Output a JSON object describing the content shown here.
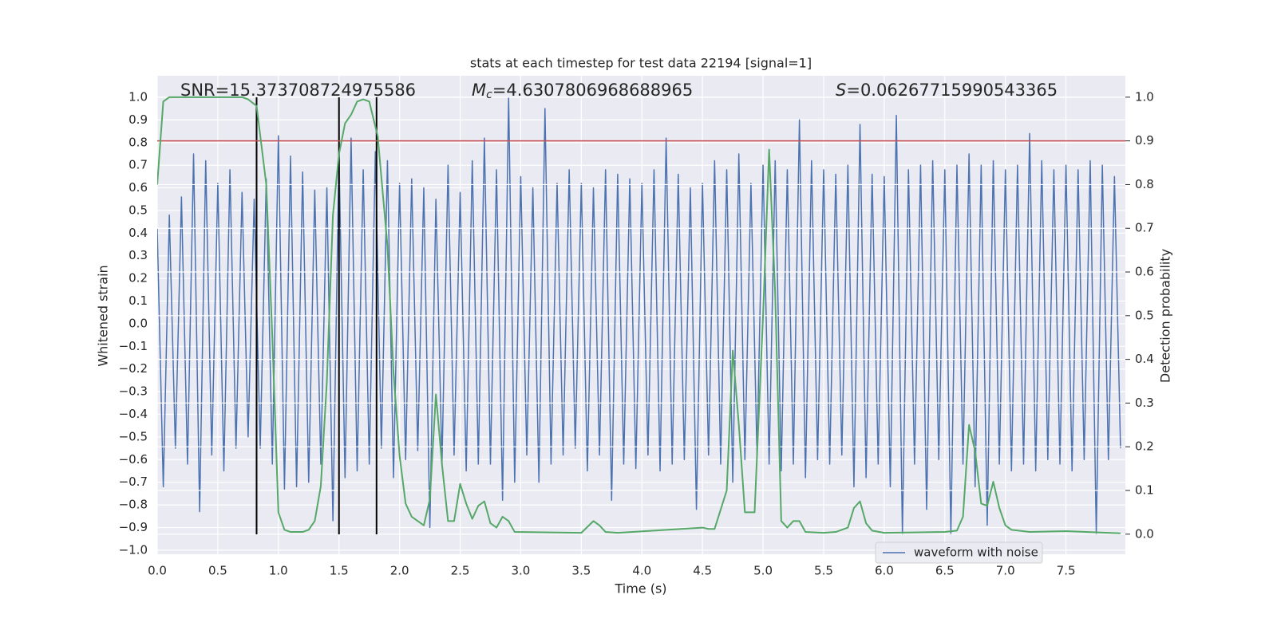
{
  "chart_data": {
    "type": "line",
    "title": "stats at each timestep for test data 22194 [signal=1]",
    "xlabel": "Time (s)",
    "ylabel": "Whitened strain",
    "y2label": "Detection probability",
    "annotations": [
      {
        "text": "SNR=15.373708724975586"
      },
      {
        "symbol": "M",
        "subscript": "c",
        "text": "=4.6307806968688965"
      },
      {
        "symbol": "S",
        "text": "=0.06267715990543365"
      }
    ],
    "xlim": [
      0,
      7.99
    ],
    "ylim": [
      -1.018,
      1.095
    ],
    "y2lim": [
      -0.046,
      1.049
    ],
    "xticks": [
      {
        "value": 0,
        "label": "0.0"
      },
      {
        "value": 0.5,
        "label": "0.5"
      },
      {
        "value": 1,
        "label": "1.0"
      },
      {
        "value": 1.5,
        "label": "1.5"
      },
      {
        "value": 2,
        "label": "2.0"
      },
      {
        "value": 2.5,
        "label": "2.5"
      },
      {
        "value": 3,
        "label": "3.0"
      },
      {
        "value": 3.5,
        "label": "3.5"
      },
      {
        "value": 4,
        "label": "4.0"
      },
      {
        "value": 4.5,
        "label": "4.5"
      },
      {
        "value": 5,
        "label": "5.0"
      },
      {
        "value": 5.5,
        "label": "5.5"
      },
      {
        "value": 6,
        "label": "6.0"
      },
      {
        "value": 6.5,
        "label": "6.5"
      },
      {
        "value": 7,
        "label": "7.0"
      },
      {
        "value": 7.5,
        "label": "7.5"
      }
    ],
    "yticks": [
      {
        "value": -1,
        "label": "−1.0"
      },
      {
        "value": -0.9,
        "label": "−0.9"
      },
      {
        "value": -0.8,
        "label": "−0.8"
      },
      {
        "value": -0.7,
        "label": "−0.7"
      },
      {
        "value": -0.6,
        "label": "−0.6"
      },
      {
        "value": -0.5,
        "label": "−0.5"
      },
      {
        "value": -0.4,
        "label": "−0.4"
      },
      {
        "value": -0.3,
        "label": "−0.3"
      },
      {
        "value": -0.2,
        "label": "−0.2"
      },
      {
        "value": -0.1,
        "label": "−0.1"
      },
      {
        "value": 0,
        "label": "0.0"
      },
      {
        "value": 0.1,
        "label": "0.1"
      },
      {
        "value": 0.2,
        "label": "0.2"
      },
      {
        "value": 0.3,
        "label": "0.3"
      },
      {
        "value": 0.4,
        "label": "0.4"
      },
      {
        "value": 0.5,
        "label": "0.5"
      },
      {
        "value": 0.6,
        "label": "0.6"
      },
      {
        "value": 0.7,
        "label": "0.7"
      },
      {
        "value": 0.8,
        "label": "0.8"
      },
      {
        "value": 0.9,
        "label": "0.9"
      },
      {
        "value": 1,
        "label": "1.0"
      }
    ],
    "y2ticks": [
      {
        "value": 0,
        "label": "0.0"
      },
      0.1,
      0.2,
      0.3,
      0.4,
      0.5,
      0.6,
      0.7,
      0.8,
      0.9,
      {
        "value": 1,
        "label": "1.0"
      }
    ],
    "grid": true,
    "legend": "lower right",
    "series": [
      {
        "name": "waveform with noise",
        "color": "#4c72b0",
        "x": [
          0,
          0.05,
          0.1,
          0.15,
          0.2,
          0.25,
          0.3,
          0.35,
          0.4,
          0.45,
          0.5,
          0.55,
          0.6,
          0.65,
          0.7,
          0.75,
          0.8,
          0.85,
          0.9,
          0.95,
          1,
          1.05,
          1.1,
          1.15,
          1.2,
          1.25,
          1.3,
          1.35,
          1.4,
          1.45,
          1.5,
          1.55,
          1.6,
          1.65,
          1.7,
          1.75,
          1.8,
          1.85,
          1.9,
          1.95,
          2,
          2.05,
          2.1,
          2.15,
          2.2,
          2.25,
          2.3,
          2.35,
          2.4,
          2.45,
          2.5,
          2.55,
          2.6,
          2.65,
          2.7,
          2.75,
          2.8,
          2.85,
          2.9,
          2.95,
          3,
          3.05,
          3.1,
          3.15,
          3.2,
          3.25,
          3.3,
          3.35,
          3.4,
          3.45,
          3.5,
          3.55,
          3.6,
          3.65,
          3.7,
          3.75,
          3.8,
          3.85,
          3.9,
          3.95,
          4,
          4.05,
          4.1,
          4.15,
          4.2,
          4.25,
          4.3,
          4.35,
          4.4,
          4.45,
          4.5,
          4.55,
          4.6,
          4.65,
          4.7,
          4.75,
          4.8,
          4.85,
          4.9,
          4.95,
          5,
          5.05,
          5.1,
          5.15,
          5.2,
          5.25,
          5.3,
          5.35,
          5.4,
          5.45,
          5.5,
          5.55,
          5.6,
          5.65,
          5.7,
          5.75,
          5.8,
          5.85,
          5.9,
          5.95,
          6,
          6.05,
          6.1,
          6.15,
          6.2,
          6.25,
          6.3,
          6.35,
          6.4,
          6.45,
          6.5,
          6.55,
          6.6,
          6.65,
          6.7,
          6.75,
          6.8,
          6.85,
          6.9,
          6.95,
          7,
          7.05,
          7.1,
          7.15,
          7.2,
          7.25,
          7.3,
          7.35,
          7.4,
          7.45,
          7.5,
          7.55,
          7.6,
          7.65,
          7.7,
          7.75,
          7.8,
          7.85,
          7.9,
          7.95
        ],
        "values": [
          0.42,
          -0.72,
          0.48,
          -0.55,
          0.56,
          -0.62,
          0.75,
          -0.83,
          0.72,
          -0.58,
          0.62,
          -0.65,
          0.68,
          -0.55,
          0.58,
          -0.5,
          0.55,
          -0.55,
          0.64,
          -0.62,
          0.83,
          -0.73,
          0.74,
          -0.72,
          0.67,
          -0.7,
          0.59,
          -0.62,
          0.6,
          -0.87,
          0.75,
          -0.68,
          0.82,
          -0.65,
          0.68,
          -0.62,
          0.76,
          -0.55,
          0.72,
          -0.68,
          0.62,
          -0.6,
          0.64,
          -0.56,
          0.6,
          -0.9,
          0.55,
          -0.62,
          0.7,
          -0.58,
          0.58,
          -0.65,
          0.72,
          -0.62,
          0.82,
          -0.62,
          0.68,
          -0.78,
          1.0,
          -0.7,
          0.65,
          -0.58,
          0.6,
          -0.7,
          0.95,
          -0.62,
          0.62,
          -0.58,
          0.68,
          -0.55,
          0.62,
          -0.65,
          0.6,
          -0.58,
          0.68,
          -0.78,
          0.66,
          -0.62,
          0.64,
          -0.64,
          0.62,
          -0.58,
          0.68,
          -0.65,
          0.82,
          -0.62,
          0.66,
          -0.6,
          0.6,
          -0.82,
          0.62,
          -0.58,
          0.72,
          -0.62,
          0.68,
          -0.7,
          0.75,
          -0.6,
          0.62,
          -0.58,
          0.7,
          -0.62,
          0.72,
          -0.65,
          0.68,
          -0.62,
          0.9,
          -0.68,
          0.72,
          -0.6,
          0.68,
          -0.62,
          0.66,
          -0.58,
          0.7,
          -0.72,
          0.88,
          -0.68,
          0.66,
          -0.62,
          0.65,
          -0.72,
          0.92,
          -0.93,
          0.68,
          -0.62,
          0.7,
          -0.82,
          0.72,
          -0.6,
          0.68,
          -0.93,
          0.7,
          -0.62,
          0.75,
          -0.72,
          0.7,
          -0.89,
          0.72,
          -0.62,
          0.68,
          -0.65,
          0.7,
          -0.62,
          0.84,
          -0.65,
          0.72,
          -0.6,
          0.68,
          -0.62,
          0.7,
          -0.65,
          0.68,
          -0.6,
          0.72,
          -0.93,
          0.7,
          -0.6,
          0.65,
          -0.55
        ]
      },
      {
        "color": "#55a868",
        "axis": "y2",
        "x": [
          0,
          0.05,
          0.1,
          0.2,
          0.5,
          0.7,
          0.75,
          0.82,
          0.9,
          0.95,
          1,
          1.05,
          1.1,
          1.2,
          1.25,
          1.3,
          1.35,
          1.4,
          1.45,
          1.5,
          1.55,
          1.6,
          1.65,
          1.7,
          1.75,
          1.82,
          1.9,
          1.95,
          2,
          2.05,
          2.1,
          2.15,
          2.2,
          2.25,
          2.3,
          2.35,
          2.4,
          2.45,
          2.5,
          2.55,
          2.6,
          2.65,
          2.7,
          2.75,
          2.8,
          2.85,
          2.9,
          2.95,
          3.5,
          3.6,
          3.65,
          3.7,
          3.8,
          4.5,
          4.55,
          4.6,
          4.7,
          4.75,
          4.8,
          4.85,
          4.93,
          5,
          5.05,
          5.1,
          5.15,
          5.2,
          5.25,
          5.3,
          5.35,
          5.5,
          5.6,
          5.7,
          5.75,
          5.8,
          5.85,
          5.9,
          6,
          6.5,
          6.6,
          6.65,
          6.7,
          6.75,
          6.8,
          6.85,
          6.9,
          6.95,
          7,
          7.05,
          7.2,
          7.5,
          7.95
        ],
        "values": [
          0.8,
          0.99,
          1.0,
          1.0,
          1.0,
          1.0,
          0.995,
          0.98,
          0.8,
          0.45,
          0.05,
          0.01,
          0.005,
          0.005,
          0.01,
          0.03,
          0.11,
          0.35,
          0.73,
          0.87,
          0.94,
          0.96,
          0.99,
          0.995,
          0.99,
          0.91,
          0.66,
          0.37,
          0.18,
          0.07,
          0.04,
          0.03,
          0.02,
          0.08,
          0.32,
          0.16,
          0.03,
          0.03,
          0.115,
          0.07,
          0.035,
          0.065,
          0.075,
          0.025,
          0.015,
          0.04,
          0.03,
          0.005,
          0.003,
          0.03,
          0.02,
          0.005,
          0.003,
          0.015,
          0.012,
          0.012,
          0.1,
          0.42,
          0.25,
          0.05,
          0.05,
          0.5,
          0.88,
          0.55,
          0.03,
          0.015,
          0.03,
          0.03,
          0.005,
          0.003,
          0.005,
          0.015,
          0.06,
          0.075,
          0.025,
          0.008,
          0.003,
          0.005,
          0.008,
          0.04,
          0.25,
          0.19,
          0.07,
          0.065,
          0.12,
          0.06,
          0.02,
          0.01,
          0.005,
          0.007,
          0.002
        ]
      }
    ],
    "hlines": [
      {
        "value": 0.9,
        "axis": "y2",
        "color": "#c44e52"
      }
    ],
    "vlines": {
      "x": [
        0.82,
        1.5,
        1.81
      ],
      "ymin": -0.93,
      "ymax": 1.0,
      "color": "#000000"
    }
  }
}
